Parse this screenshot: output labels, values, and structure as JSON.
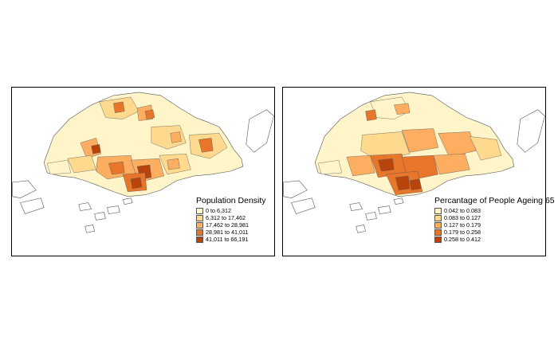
{
  "maps": [
    {
      "id": "population-density",
      "legend": {
        "title": "Population Density",
        "classes": [
          {
            "label": "0 to 6,312",
            "color": "#fff5c8"
          },
          {
            "label": "6,312 to 17,462",
            "color": "#fed98e"
          },
          {
            "label": "17,462 to 28,981",
            "color": "#fdae61"
          },
          {
            "label": "28,981 to 41,011",
            "color": "#e8762a"
          },
          {
            "label": "41,011 to 66,191",
            "color": "#b8440c"
          }
        ]
      }
    },
    {
      "id": "percentage-ageing-65",
      "legend": {
        "title": "Percantage of People Ageing 65",
        "classes": [
          {
            "label": "0.042 to 0.083",
            "color": "#fff5c8"
          },
          {
            "label": "0.083 to 0.127",
            "color": "#fed98e"
          },
          {
            "label": "0.127 to 0.179",
            "color": "#fdae61"
          },
          {
            "label": "0.179 to 0.258",
            "color": "#e8762a"
          },
          {
            "label": "0.258 to 0.412",
            "color": "#b8440c"
          }
        ]
      }
    }
  ]
}
